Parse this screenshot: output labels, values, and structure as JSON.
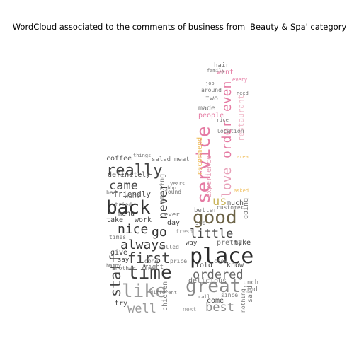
{
  "chart_data": {
    "type": "wordcloud",
    "title": "WordCloud associated to the comments of business from 'Beauty & Spa' category",
    "words": [
      {
        "text": "place",
        "weight": 1.0
      },
      {
        "text": "good",
        "weight": 0.95
      },
      {
        "text": "great",
        "weight": 0.9
      },
      {
        "text": "service",
        "weight": 0.9
      },
      {
        "text": "like",
        "weight": 0.85
      },
      {
        "text": "time",
        "weight": 0.85
      },
      {
        "text": "back",
        "weight": 0.8
      },
      {
        "text": "really",
        "weight": 0.75
      },
      {
        "text": "first",
        "weight": 0.7
      },
      {
        "text": "always",
        "weight": 0.65
      },
      {
        "text": "nice",
        "weight": 0.65
      },
      {
        "text": "go",
        "weight": 0.65
      },
      {
        "text": "staff",
        "weight": 0.6
      },
      {
        "text": "ordered",
        "weight": 0.6
      },
      {
        "text": "little",
        "weight": 0.55
      },
      {
        "text": "best",
        "weight": 0.55
      },
      {
        "text": "came",
        "weight": 0.55
      },
      {
        "text": "well",
        "weight": 0.55
      },
      {
        "text": "love",
        "weight": 0.5
      },
      {
        "text": "order",
        "weight": 0.5
      },
      {
        "text": "even",
        "weight": 0.5
      },
      {
        "text": "never",
        "weight": 0.45
      },
      {
        "text": "us",
        "weight": 0.45
      },
      {
        "text": "friendly",
        "weight": 0.35
      },
      {
        "text": "definitely",
        "weight": 0.35
      },
      {
        "text": "coffee",
        "weight": 0.35
      },
      {
        "text": "menu",
        "weight": 0.35
      },
      {
        "text": "amazing",
        "weight": 0.3
      },
      {
        "text": "experience",
        "weight": 0.3
      },
      {
        "text": "recommend",
        "weight": 0.3
      },
      {
        "text": "restaurant",
        "weight": 0.3
      },
      {
        "text": "people",
        "weight": 0.3
      },
      {
        "text": "made",
        "weight": 0.3
      },
      {
        "text": "two",
        "weight": 0.3
      },
      {
        "text": "went",
        "weight": 0.3
      },
      {
        "text": "hair",
        "weight": 0.3
      },
      {
        "text": "delicious",
        "weight": 0.3
      },
      {
        "text": "pretty",
        "weight": 0.3
      },
      {
        "text": "know",
        "weight": 0.3
      },
      {
        "text": "make",
        "weight": 0.3
      },
      {
        "text": "told",
        "weight": 0.3
      },
      {
        "text": "come",
        "weight": 0.3
      },
      {
        "text": "much",
        "weight": 0.3
      },
      {
        "text": "better",
        "weight": 0.25
      },
      {
        "text": "chicken",
        "weight": 0.25
      },
      {
        "text": "going",
        "weight": 0.25
      },
      {
        "text": "work",
        "weight": 0.25
      },
      {
        "text": "take",
        "weight": 0.25
      },
      {
        "text": "give",
        "weight": 0.25
      },
      {
        "text": "say",
        "weight": 0.25
      },
      {
        "text": "try",
        "weight": 0.25
      },
      {
        "text": "day",
        "weight": 0.25
      },
      {
        "text": "want",
        "weight": 0.25
      },
      {
        "text": "ever",
        "weight": 0.25
      },
      {
        "text": "way",
        "weight": 0.25
      },
      {
        "text": "right",
        "weight": 0.25
      },
      {
        "text": "said",
        "weight": 0.25
      },
      {
        "text": "lunch",
        "weight": 0.25
      },
      {
        "text": "find",
        "weight": 0.25
      },
      {
        "text": "salad",
        "weight": 0.25
      },
      {
        "text": "meat",
        "weight": 0.25
      },
      {
        "text": "tried",
        "weight": 0.25
      },
      {
        "text": "found",
        "weight": 0.25
      },
      {
        "text": "bad",
        "weight": 0.25
      },
      {
        "text": "fresh",
        "weight": 0.25
      },
      {
        "text": "price",
        "weight": 0.25
      },
      {
        "text": "another",
        "weight": 0.2
      },
      {
        "text": "done",
        "weight": 0.2
      },
      {
        "text": "see",
        "weight": 0.2
      },
      {
        "text": "customer",
        "weight": 0.2
      },
      {
        "text": "location",
        "weight": 0.2
      },
      {
        "text": "around",
        "weight": 0.2
      },
      {
        "text": "job",
        "weight": 0.2
      },
      {
        "text": "every",
        "weight": 0.2
      },
      {
        "text": "since",
        "weight": 0.2
      },
      {
        "text": "called",
        "weight": 0.2
      },
      {
        "text": "cook",
        "weight": 0.2
      },
      {
        "text": "times",
        "weight": 0.2
      },
      {
        "text": "happy",
        "weight": 0.2
      },
      {
        "text": "different",
        "weight": 0.2
      },
      {
        "text": "next",
        "weight": 0.2
      },
      {
        "text": "nothing",
        "weight": 0.2
      },
      {
        "text": "years",
        "weight": 0.2
      },
      {
        "text": "need",
        "weight": 0.2
      },
      {
        "text": "rice",
        "weight": 0.2
      },
      {
        "text": "area",
        "weight": 0.2
      },
      {
        "text": "asked",
        "weight": 0.2
      },
      {
        "text": "things",
        "weight": 0.2
      },
      {
        "text": "sure",
        "weight": 0.2
      },
      {
        "text": "shop",
        "weight": 0.2
      },
      {
        "text": "call",
        "weight": 0.2
      },
      {
        "text": "family",
        "weight": 0.2
      }
    ]
  }
}
